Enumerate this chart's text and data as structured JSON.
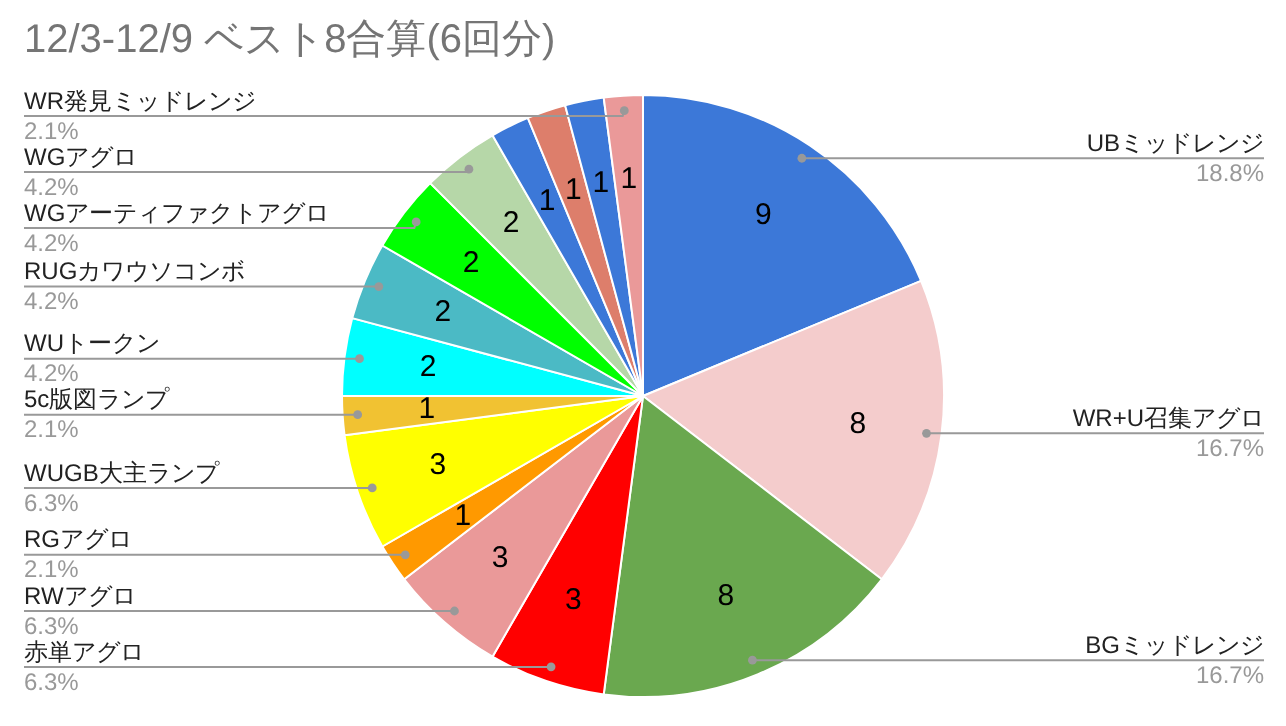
{
  "chart_data": {
    "type": "pie",
    "title": "12/3-12/9 ベスト8合算(6回分)",
    "categories": [
      "UBミッドレンジ",
      "WR+U召集アグロ",
      "BGミッドレンジ",
      "赤単アグロ",
      "RWアグロ",
      "RGアグロ",
      "WUGB大主ランプ",
      "5c版図ランプ",
      "WUトークン",
      "RUGカワウソコンボ",
      "WGアーティファクトアグロ",
      "WGアグロ",
      null,
      null,
      null,
      "WR発見ミッドレンジ"
    ],
    "values": [
      9,
      8,
      8,
      3,
      3,
      1,
      3,
      1,
      2,
      2,
      2,
      2,
      1,
      1,
      1,
      1
    ],
    "colors": [
      "#3c78d8",
      "#f4cccc",
      "#6aa84f",
      "#ff0000",
      "#ea9999",
      "#ff9900",
      "#ffff00",
      "#f1c232",
      "#00ffff",
      "#4bbac5",
      "#00ff00",
      "#b6d7a8",
      "#3c78d8",
      "#dd7e6b",
      "#3c78d8",
      "#ea9999"
    ],
    "data_labels": true,
    "annotations": [
      {
        "text": "18.8%",
        "x": "UBミッドレンジ"
      },
      {
        "text": "16.7%",
        "x": "WR+U召集アグロ"
      },
      {
        "text": "16.7%",
        "x": "BGミッドレンジ"
      },
      {
        "text": "6.3%",
        "x": "赤単アグロ"
      },
      {
        "text": "6.3%",
        "x": "RWアグロ"
      },
      {
        "text": "2.1%",
        "x": "RGアグロ"
      },
      {
        "text": "6.3%",
        "x": "WUGB大主ランプ"
      },
      {
        "text": "2.1%",
        "x": "5c版図ランプ"
      },
      {
        "text": "4.2%",
        "x": "WUトークン"
      },
      {
        "text": "4.2%",
        "x": "RUGカワウソコンボ"
      },
      {
        "text": "4.2%",
        "x": "WGアーティファクトアグロ"
      },
      {
        "text": "4.2%",
        "x": "WGアグロ"
      },
      {
        "text": "2.1%",
        "x": "WR発見ミッドレンジ"
      }
    ]
  }
}
